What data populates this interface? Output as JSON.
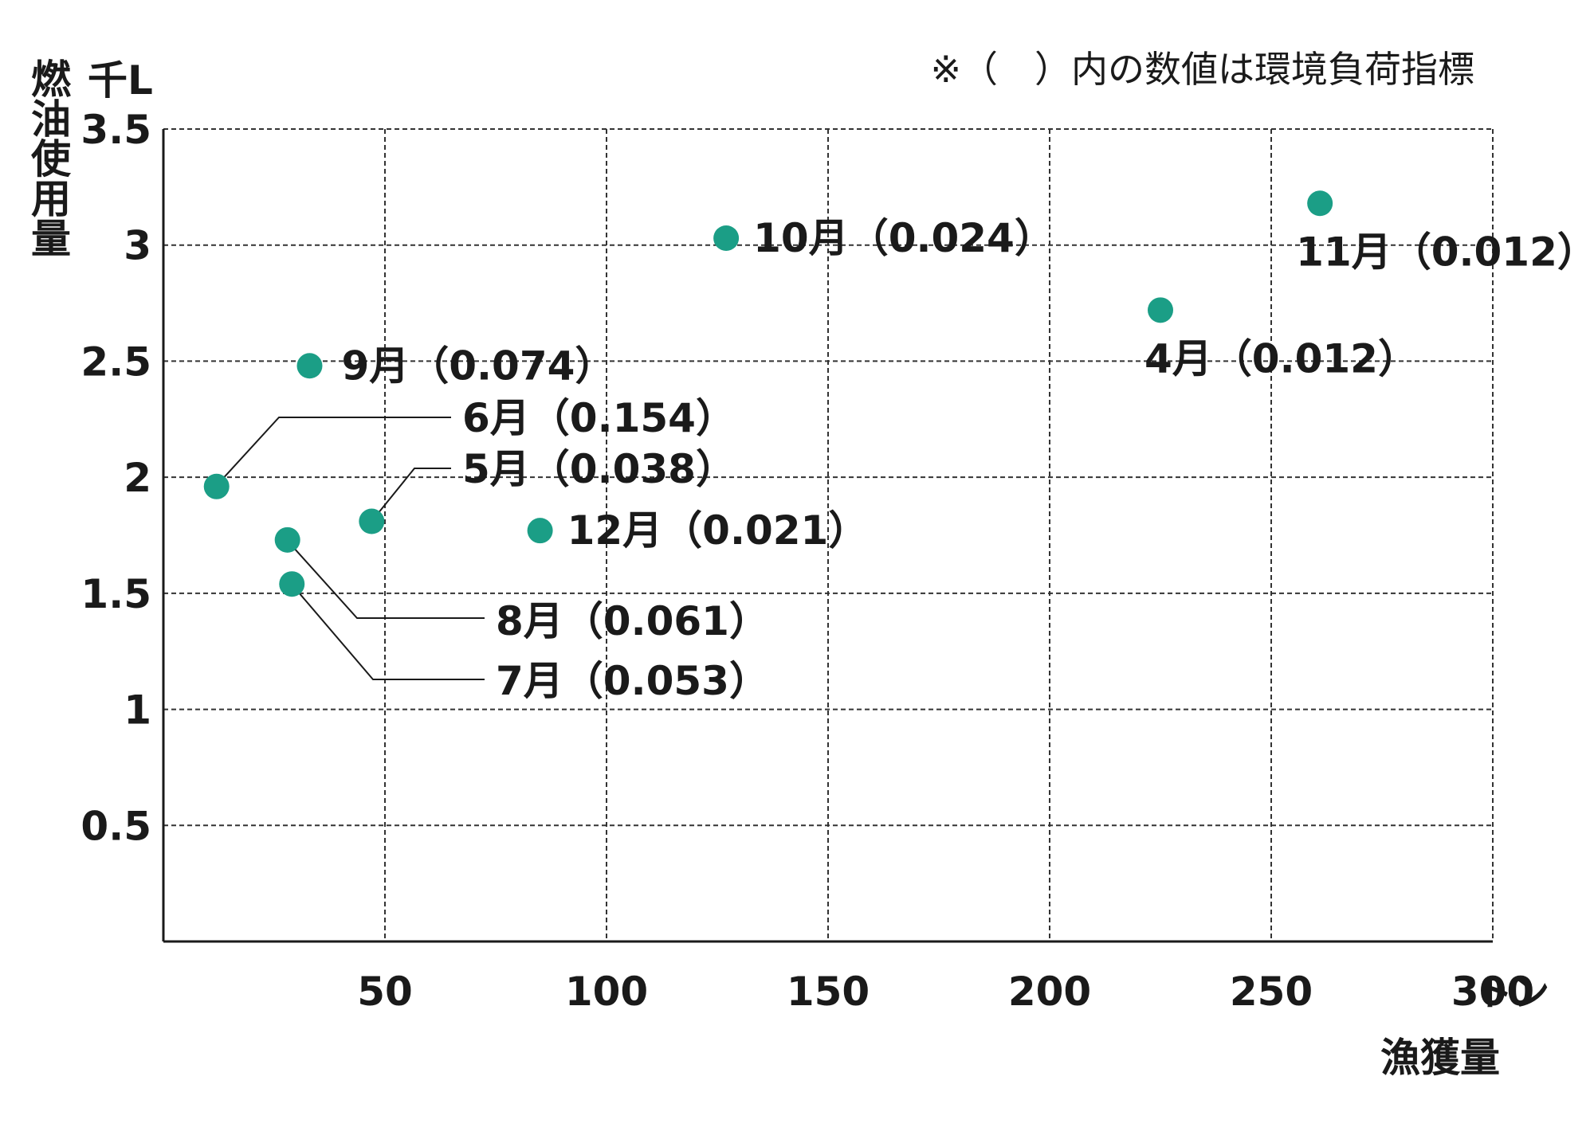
{
  "chart_data": {
    "type": "scatter",
    "note": "※（　）内の数値は環境負荷指標",
    "y_unit": "千L",
    "ylabel": "燃油使用量",
    "x_unit": "トン",
    "xlabel": "漁獲量",
    "xlim": [
      0,
      300
    ],
    "ylim": [
      0,
      3.5
    ],
    "x_ticks": [
      50,
      100,
      150,
      200,
      250,
      300
    ],
    "x_tick_labels": [
      "50",
      "100",
      "150",
      "200",
      "250",
      "300"
    ],
    "y_ticks": [
      0.5,
      1,
      1.5,
      2,
      2.5,
      3,
      3.5
    ],
    "y_tick_labels": [
      "0.5",
      "1",
      "1.5",
      "2",
      "2.5",
      "3",
      "3.5"
    ],
    "grid": true,
    "marker_color": "#1b9e86",
    "points": [
      {
        "label": "4月（0.012）",
        "x": 225,
        "y": 2.72
      },
      {
        "label": "5月（0.038）",
        "x": 47,
        "y": 1.81
      },
      {
        "label": "6月（0.154）",
        "x": 12,
        "y": 1.96
      },
      {
        "label": "7月（0.053）",
        "x": 29,
        "y": 1.54
      },
      {
        "label": "8月（0.061）",
        "x": 28,
        "y": 1.73
      },
      {
        "label": "9月（0.074）",
        "x": 33,
        "y": 2.48
      },
      {
        "label": "10月（0.024）",
        "x": 127,
        "y": 3.03
      },
      {
        "label": "11月（0.012）",
        "x": 261,
        "y": 3.18
      },
      {
        "label": "12月（0.021）",
        "x": 85,
        "y": 1.77
      }
    ]
  }
}
